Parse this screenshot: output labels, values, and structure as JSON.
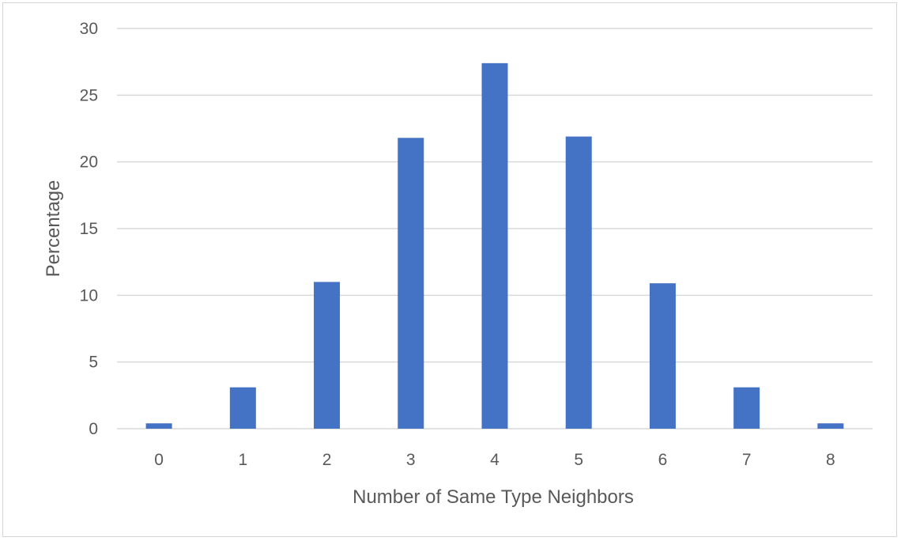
{
  "chart_data": {
    "type": "bar",
    "categories": [
      "0",
      "1",
      "2",
      "3",
      "4",
      "5",
      "6",
      "7",
      "8"
    ],
    "values": [
      0.4,
      3.1,
      11.0,
      21.8,
      27.4,
      21.9,
      10.9,
      3.1,
      0.4
    ],
    "xlabel": "Number of Same Type Neighbors",
    "ylabel": "Percentage",
    "ylim": [
      0,
      30
    ],
    "yticks": [
      0,
      5,
      10,
      15,
      20,
      25,
      30
    ],
    "grid": true,
    "legend": "none",
    "bar_color": "#4472C4"
  }
}
